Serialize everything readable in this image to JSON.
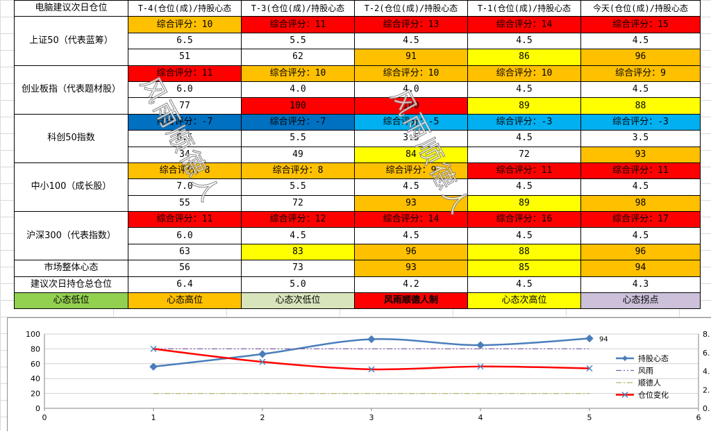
{
  "colors": {
    "orange": "#FFC000",
    "red": "#FF0000",
    "yellow": "#FFFF00",
    "darkblue": "#0070C0",
    "lightblue": "#00B0F0",
    "green": "#92D050",
    "sage": "#D8E4BC",
    "lavender": "#CCC0DA",
    "white": "#FFFFFF"
  },
  "table": {
    "corner_label": "电脑建议次日仓位",
    "headers": [
      "T-4(仓位(成)/持股心态",
      "T-3(仓位(成)/持股心态",
      "T-2(仓位(成)/持股心态",
      "T-1(仓位(成)/持股心态",
      "今天(仓位(成)/持股心态"
    ],
    "groups": [
      {
        "label": "上证50（代表蓝筹）",
        "rows": [
          [
            {
              "t": "综合评分：10",
              "c": "orange"
            },
            {
              "t": "综合评分：11",
              "c": "red"
            },
            {
              "t": "综合评分：13",
              "c": "red"
            },
            {
              "t": "综合评分：14",
              "c": "red"
            },
            {
              "t": "综合评分：15",
              "c": "red"
            }
          ],
          [
            {
              "t": "6.5",
              "c": "white"
            },
            {
              "t": "5.5",
              "c": "white"
            },
            {
              "t": "4.5",
              "c": "white"
            },
            {
              "t": "4.5",
              "c": "white"
            },
            {
              "t": "4.5",
              "c": "white"
            }
          ],
          [
            {
              "t": "51",
              "c": "white"
            },
            {
              "t": "62",
              "c": "white"
            },
            {
              "t": "91",
              "c": "orange"
            },
            {
              "t": "86",
              "c": "yellow"
            },
            {
              "t": "96",
              "c": "orange"
            }
          ]
        ]
      },
      {
        "label": "创业板指（代表题材股）",
        "rows": [
          [
            {
              "t": "综合评分：11",
              "c": "red"
            },
            {
              "t": "综合评分：10",
              "c": "orange"
            },
            {
              "t": "综合评分：10",
              "c": "orange"
            },
            {
              "t": "综合评分：10",
              "c": "orange"
            },
            {
              "t": "综合评分：9",
              "c": "orange"
            }
          ],
          [
            {
              "t": "6.0",
              "c": "white"
            },
            {
              "t": "4.0",
              "c": "white"
            },
            {
              "t": "4.0",
              "c": "white"
            },
            {
              "t": "4.5",
              "c": "white"
            },
            {
              "t": "4.5",
              "c": "white"
            }
          ],
          [
            {
              "t": "77",
              "c": "white"
            },
            {
              "t": "100",
              "c": "red"
            },
            {
              "t": "100",
              "c": "red"
            },
            {
              "t": "89",
              "c": "yellow"
            },
            {
              "t": "88",
              "c": "yellow"
            }
          ]
        ]
      },
      {
        "label": "科创50指数",
        "rows": [
          [
            {
              "t": "综合评分：-7",
              "c": "darkblue"
            },
            {
              "t": "综合评分：-7",
              "c": "darkblue"
            },
            {
              "t": "综合评分：-5",
              "c": "lightblue"
            },
            {
              "t": "综合评分：-3",
              "c": "lightblue"
            },
            {
              "t": "综合评分：-3",
              "c": "lightblue"
            }
          ],
          [
            {
              "t": "6.5",
              "c": "white"
            },
            {
              "t": "5.5",
              "c": "white"
            },
            {
              "t": "3.5",
              "c": "white"
            },
            {
              "t": "4.5",
              "c": "white"
            },
            {
              "t": "3.5",
              "c": "white"
            }
          ],
          [
            {
              "t": "34",
              "c": "white"
            },
            {
              "t": "49",
              "c": "white"
            },
            {
              "t": "84",
              "c": "yellow"
            },
            {
              "t": "72",
              "c": "white"
            },
            {
              "t": "93",
              "c": "orange"
            }
          ]
        ]
      },
      {
        "label": "中小100（成长股）",
        "rows": [
          [
            {
              "t": "综合评分：8",
              "c": "orange"
            },
            {
              "t": "综合评分：8",
              "c": "orange"
            },
            {
              "t": "综合评分：9",
              "c": "orange"
            },
            {
              "t": "综合评分：11",
              "c": "red"
            },
            {
              "t": "综合评分：11",
              "c": "red"
            }
          ],
          [
            {
              "t": "7.0",
              "c": "white"
            },
            {
              "t": "5.5",
              "c": "white"
            },
            {
              "t": "4.5",
              "c": "white"
            },
            {
              "t": "4.5",
              "c": "white"
            },
            {
              "t": "4.5",
              "c": "white"
            }
          ],
          [
            {
              "t": "55",
              "c": "white"
            },
            {
              "t": "72",
              "c": "white"
            },
            {
              "t": "93",
              "c": "orange"
            },
            {
              "t": "89",
              "c": "yellow"
            },
            {
              "t": "98",
              "c": "orange"
            }
          ]
        ]
      },
      {
        "label": "沪深300（代表指数）",
        "rows": [
          [
            {
              "t": "综合评分：11",
              "c": "red"
            },
            {
              "t": "综合评分：12",
              "c": "red"
            },
            {
              "t": "综合评分：14",
              "c": "red"
            },
            {
              "t": "综合评分：16",
              "c": "red"
            },
            {
              "t": "综合评分：17",
              "c": "red"
            }
          ],
          [
            {
              "t": "6.0",
              "c": "white"
            },
            {
              "t": "4.5",
              "c": "white"
            },
            {
              "t": "4.5",
              "c": "white"
            },
            {
              "t": "4.5",
              "c": "white"
            },
            {
              "t": "4.5",
              "c": "white"
            }
          ],
          [
            {
              "t": "63",
              "c": "white"
            },
            {
              "t": "83",
              "c": "yellow"
            },
            {
              "t": "96",
              "c": "orange"
            },
            {
              "t": "88",
              "c": "yellow"
            },
            {
              "t": "96",
              "c": "orange"
            }
          ]
        ]
      }
    ],
    "summary_rows": [
      {
        "label": "市场整体心态",
        "cells": [
          {
            "t": "56",
            "c": "white"
          },
          {
            "t": "73",
            "c": "white"
          },
          {
            "t": "93",
            "c": "orange"
          },
          {
            "t": "85",
            "c": "yellow"
          },
          {
            "t": "94",
            "c": "orange"
          }
        ]
      },
      {
        "label": "建议次日持仓总仓位",
        "cells": [
          {
            "t": "6.4",
            "c": "white"
          },
          {
            "t": "5.0",
            "c": "white"
          },
          {
            "t": "4.2",
            "c": "white"
          },
          {
            "t": "4.5",
            "c": "white"
          },
          {
            "t": "4.3",
            "c": "white"
          }
        ]
      }
    ],
    "legend_row": [
      {
        "t": "心态低位",
        "c": "green",
        "bold": false
      },
      {
        "t": "心态高位",
        "c": "orange",
        "bold": false
      },
      {
        "t": "心态次低位",
        "c": "sage",
        "bold": false
      },
      {
        "t": "风雨顺德人制",
        "c": "red",
        "bold": true
      },
      {
        "t": "心态次高位",
        "c": "yellow",
        "bold": false
      },
      {
        "t": "心态拐点",
        "c": "lavender",
        "bold": false
      }
    ]
  },
  "watermarks": [
    "风雨顺德人",
    "风雨顺德人"
  ],
  "chart_data": {
    "type": "line",
    "x": [
      1,
      2,
      3,
      4,
      5
    ],
    "xlim": [
      0,
      6
    ],
    "xticks": [
      0,
      1,
      2,
      3,
      4,
      5,
      6
    ],
    "ylim": [
      0,
      100
    ],
    "yticks": [
      0,
      20,
      40,
      60,
      80,
      100
    ],
    "y2lim": [
      0,
      8
    ],
    "y2ticks": [
      "0.",
      "2.",
      "4.",
      "6.",
      "8."
    ],
    "grid": true,
    "legend_position": "right",
    "data_label": "94",
    "series": [
      {
        "name": "持股心态",
        "axis": "left",
        "values": [
          56,
          73,
          93,
          85,
          94
        ],
        "color": "#4A7EBB",
        "marker": "diamond",
        "style": "solid"
      },
      {
        "name": "风雨",
        "axis": "left",
        "values": [
          80,
          80,
          80,
          80,
          80
        ],
        "color": "#7F5FA8",
        "marker": "none",
        "style": "dashdotdot"
      },
      {
        "name": "顺德人",
        "axis": "left",
        "values": [
          20,
          20,
          20,
          20,
          20
        ],
        "color": "#B5B56A",
        "marker": "none",
        "style": "dashdot"
      },
      {
        "name": "仓位变化",
        "axis": "right",
        "values": [
          6.4,
          5.0,
          4.2,
          4.5,
          4.3
        ],
        "color": "#FF0000",
        "marker": "x",
        "style": "solid"
      }
    ]
  }
}
